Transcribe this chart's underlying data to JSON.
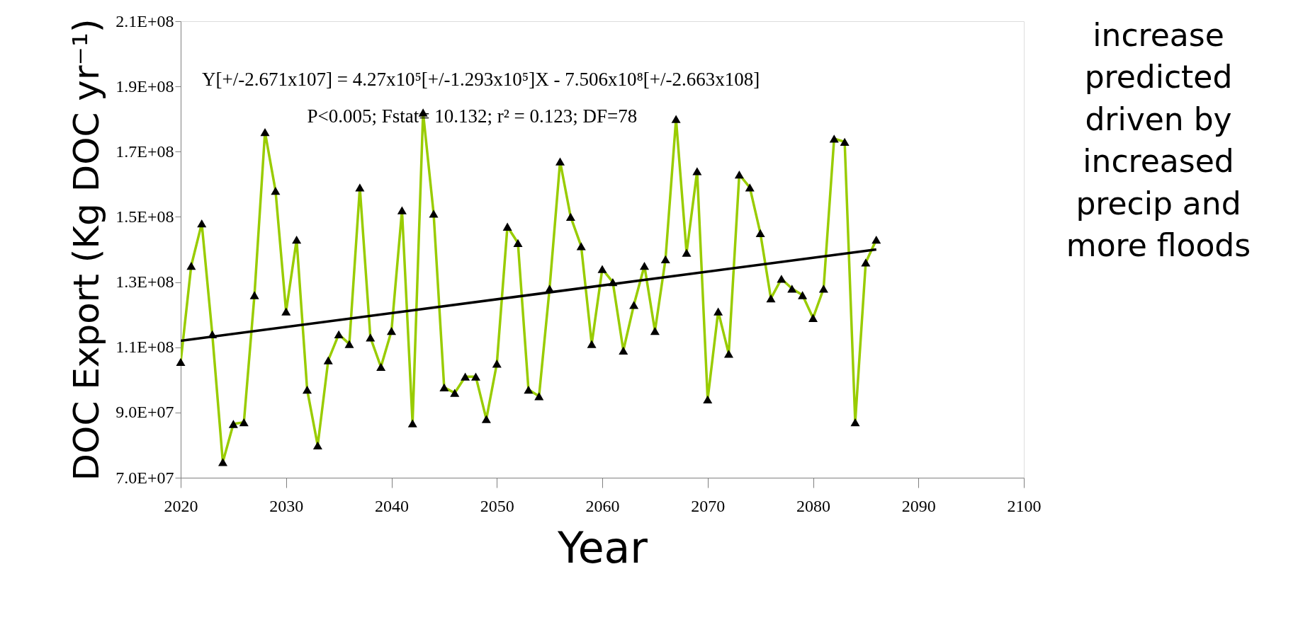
{
  "chart_data": {
    "type": "line",
    "xlabel": "Year",
    "ylabel": "DOC Export (Kg DOC yr⁻¹)",
    "xlim": [
      2020,
      2100
    ],
    "xticks": [
      2020,
      2030,
      2040,
      2050,
      2060,
      2070,
      2080,
      2090,
      2100
    ],
    "ylim": [
      70000000,
      210000000
    ],
    "yticks": [
      {
        "value": 70000000,
        "label": "7.0E+07"
      },
      {
        "value": 90000000,
        "label": "9.0E+07"
      },
      {
        "value": 110000000,
        "label": "1.1E+08"
      },
      {
        "value": 130000000,
        "label": "1.3E+08"
      },
      {
        "value": 150000000,
        "label": "1.5E+08"
      },
      {
        "value": 170000000,
        "label": "1.7E+08"
      },
      {
        "value": 190000000,
        "label": "1.9E+08"
      },
      {
        "value": 210000000,
        "label": "2.1E+08"
      }
    ],
    "grid": false,
    "marker": "triangle",
    "line_style": "solid",
    "annotations": [
      "Y[+/-2.671x107] = 4.27x10⁵[+/-1.293x10⁵]X - 7.506x10⁸[+/-2.663x108]",
      "P<0.005; Fstat= 10.132; r² = 0.123; DF=78",
      "increase predicted driven by increased precip and more floods"
    ],
    "series": [
      {
        "color": "#99cc00",
        "x": [
          2020,
          2021,
          2022,
          2023,
          2024,
          2025,
          2026,
          2027,
          2028,
          2029,
          2030,
          2031,
          2032,
          2033,
          2034,
          2035,
          2036,
          2037,
          2038,
          2039,
          2040,
          2041,
          2042,
          2043,
          2044,
          2045,
          2046,
          2047,
          2048,
          2049,
          2050,
          2051,
          2052,
          2053,
          2054,
          2055,
          2056,
          2057,
          2058,
          2059,
          2060,
          2061,
          2062,
          2063,
          2064,
          2065,
          2066,
          2067,
          2068,
          2069,
          2070,
          2071,
          2072,
          2073,
          2074,
          2075,
          2076,
          2077,
          2078,
          2079,
          2080,
          2081,
          2082,
          2083,
          2084,
          2085,
          2086
        ],
        "values": [
          105500000,
          135000000,
          148000000,
          114000000,
          74800000,
          86500000,
          87000000,
          126000000,
          176000000,
          158000000,
          121000000,
          143000000,
          97000000,
          79900000,
          106000000,
          114000000,
          111000000,
          159000000,
          113000000,
          104000000,
          115000000,
          152000000,
          86700000,
          182000000,
          151000000,
          97700000,
          96000000,
          101000000,
          101000000,
          88000000,
          105000000,
          147000000,
          142000000,
          97000000,
          95000000,
          128000000,
          167000000,
          150000000,
          141000000,
          111000000,
          134000000,
          130000000,
          109000000,
          123000000,
          135000000,
          115000000,
          137000000,
          180000000,
          139000000,
          164000000,
          94000000,
          121000000,
          108000000,
          163000000,
          159000000,
          145000000,
          125000000,
          131000000,
          128000000,
          126000000,
          119000000,
          128000000,
          174000000,
          173000000,
          87000000,
          136000000,
          143000000
        ]
      },
      {
        "color": "#000000",
        "marker": "none",
        "x": [
          2020,
          2086
        ],
        "values": [
          112000000,
          140000000
        ]
      }
    ]
  }
}
